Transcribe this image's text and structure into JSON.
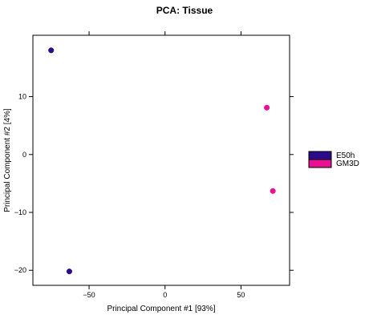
{
  "chart_data": {
    "type": "scatter",
    "title": "PCA: Tissue",
    "xlabel": "Principal Component #1 [93%]",
    "ylabel": "Principal Component #2 [4%]",
    "xlim": [
      -87,
      82
    ],
    "ylim": [
      -22.6,
      20.6
    ],
    "xticks": [
      -50,
      0,
      50
    ],
    "yticks": [
      -20,
      -10,
      0,
      10
    ],
    "grid": false,
    "legend": "right",
    "series": [
      {
        "name": "E50h",
        "color": "#2b0b8a",
        "points": [
          {
            "x": -75,
            "y": 18
          },
          {
            "x": -63,
            "y": -20.2
          }
        ]
      },
      {
        "name": "GM3D",
        "color": "#e8118f",
        "points": [
          {
            "x": 67,
            "y": 8.1
          },
          {
            "x": 71,
            "y": -6.3
          }
        ]
      }
    ]
  }
}
